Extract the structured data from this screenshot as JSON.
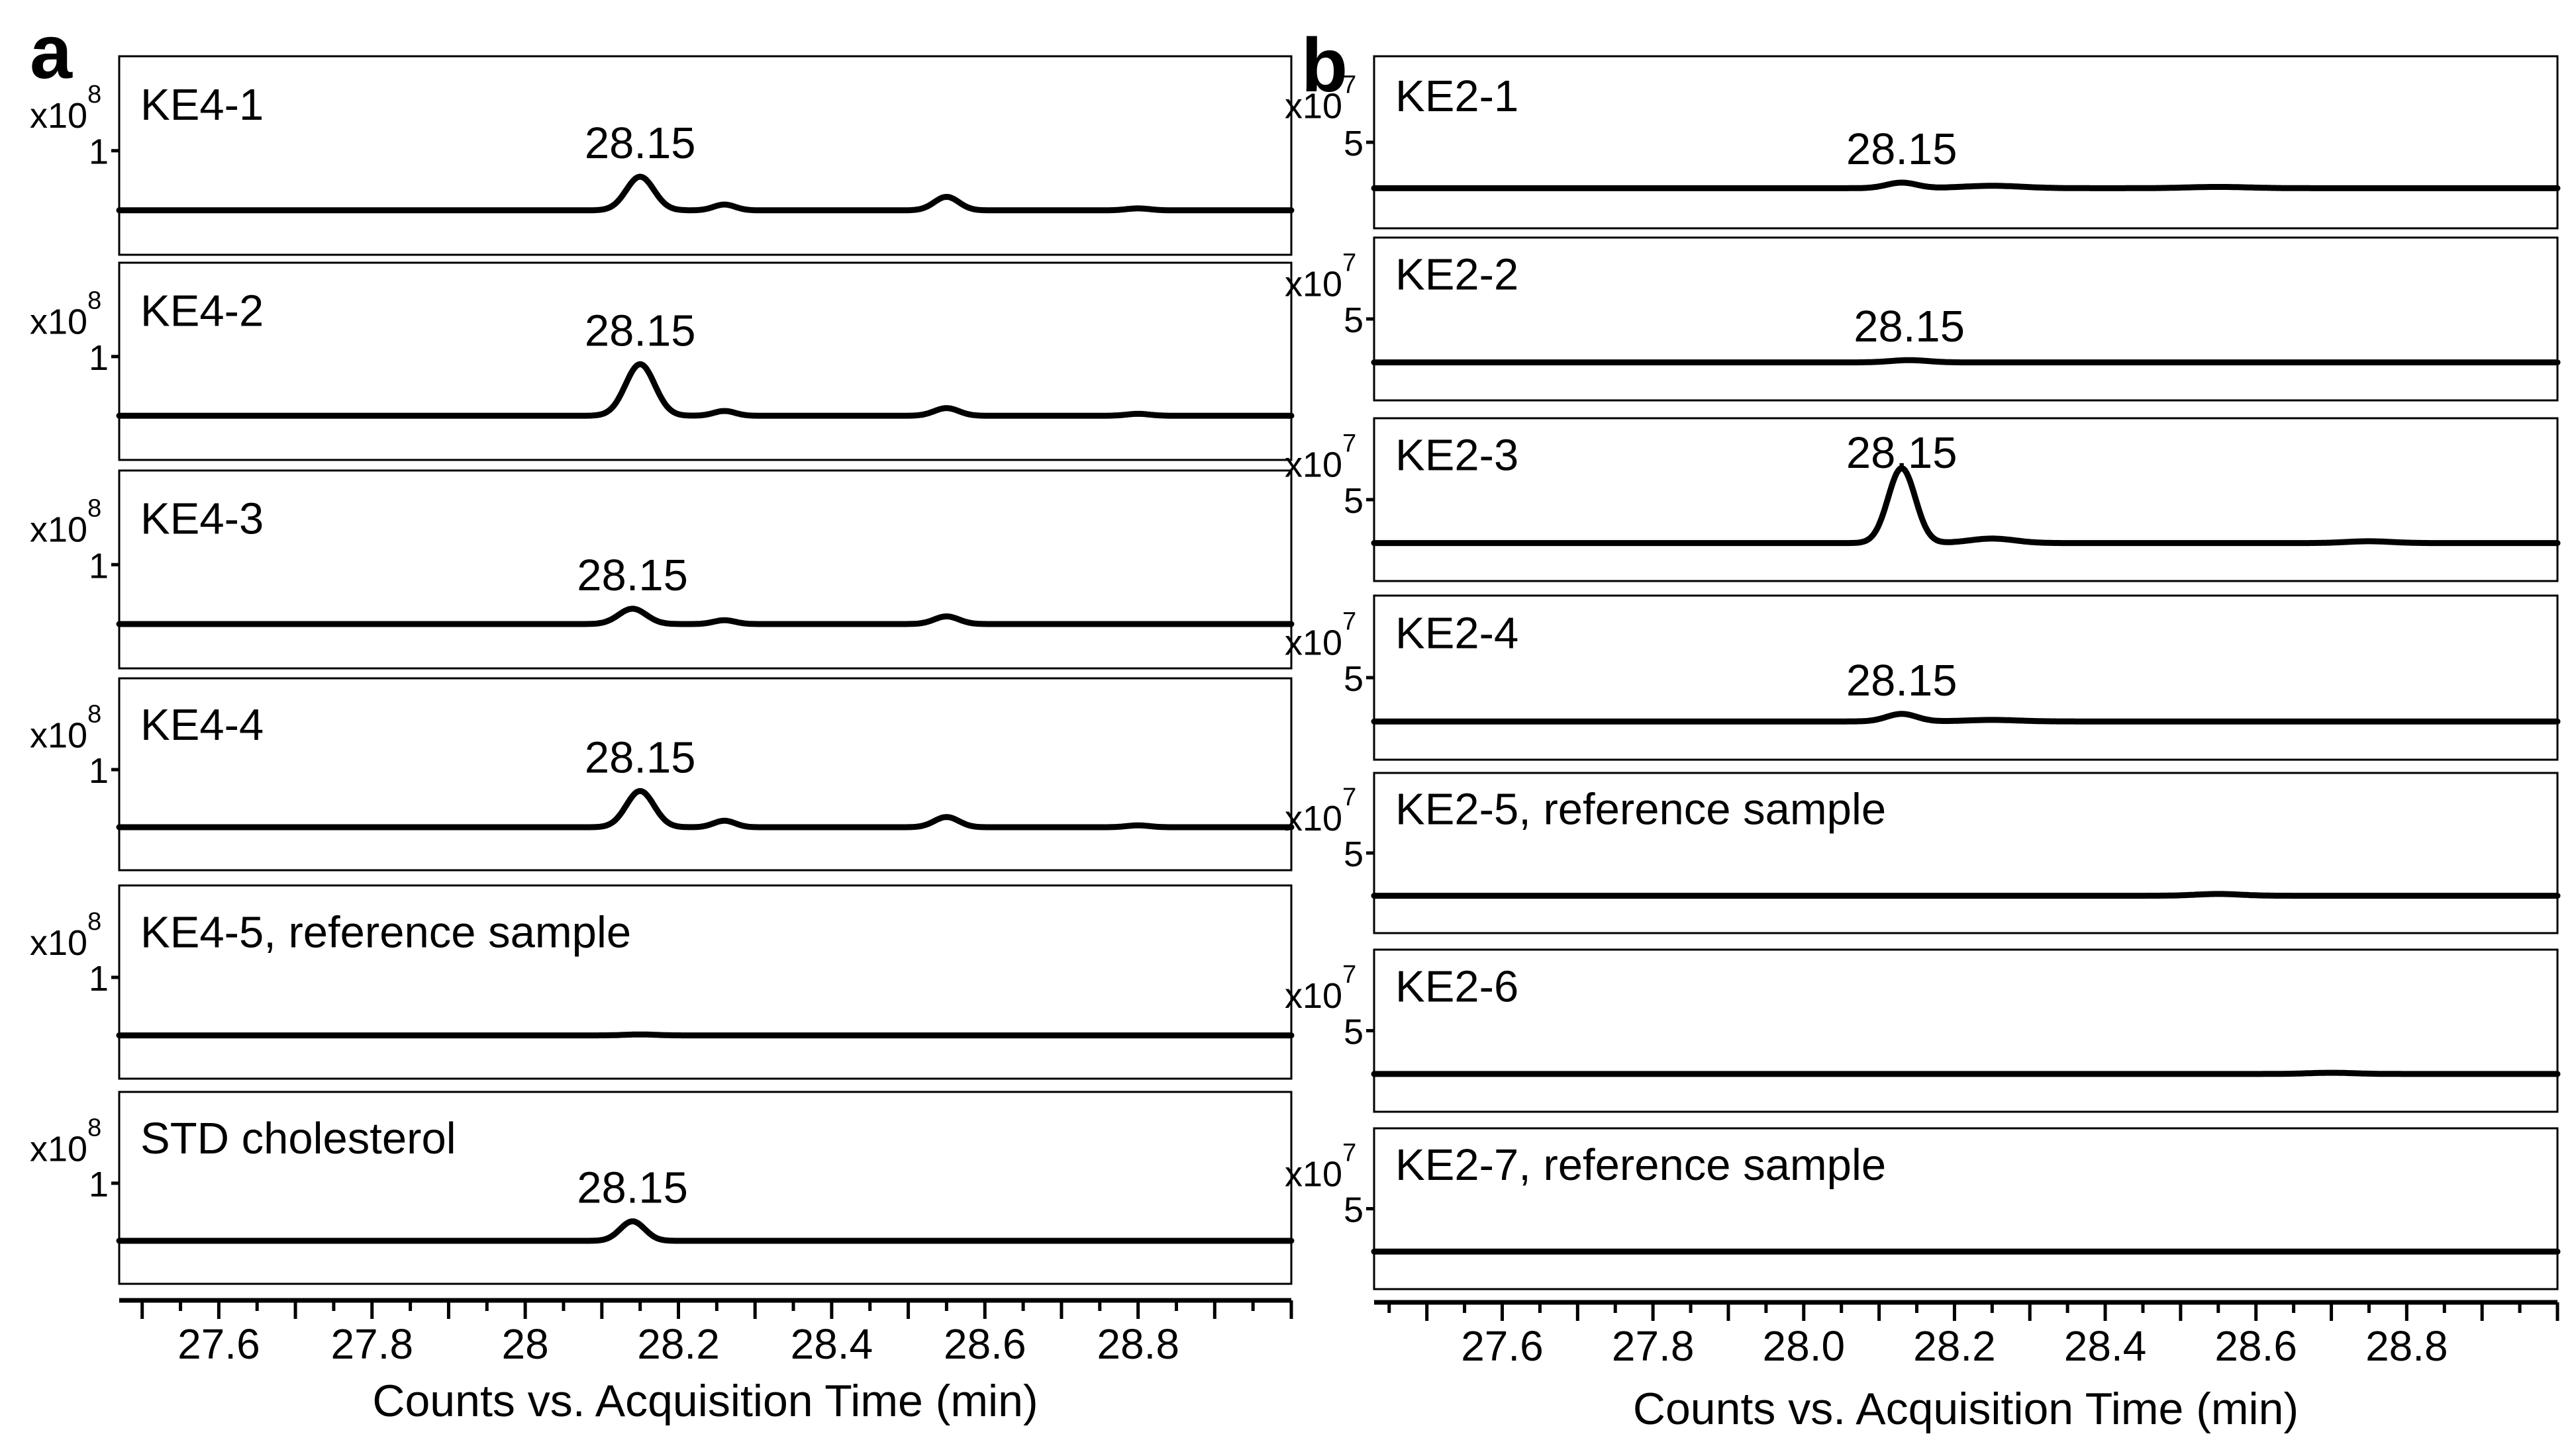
{
  "chart_data": [
    {
      "panel": "a",
      "type": "line",
      "xlabel": "Counts vs. Acquisition Time (min)",
      "xlim": [
        27.47,
        29.0
      ],
      "xtick_values": [
        27.6,
        27.8,
        28.0,
        28.2,
        28.4,
        28.6,
        28.8
      ],
      "xtick_labels": [
        "27.6",
        "27.8",
        "28",
        "28.2",
        "28.4",
        "28.6",
        "28.8"
      ],
      "y_multiplier": {
        "base": "x10",
        "exponent": "8"
      },
      "ytick_label": "1",
      "ytick_value": 1,
      "ylim": [
        0,
        1.9
      ],
      "baseline": 0.38,
      "traces": [
        {
          "name": "KE4-1",
          "peak_label": "28.15",
          "peaks": [
            {
              "x": 28.15,
              "h": 0.35,
              "w": 0.018
            },
            {
              "x": 28.26,
              "h": 0.06,
              "w": 0.014
            },
            {
              "x": 28.55,
              "h": 0.14,
              "w": 0.016
            },
            {
              "x": 28.8,
              "h": 0.02,
              "w": 0.015
            }
          ]
        },
        {
          "name": "KE4-2",
          "peak_label": "28.15",
          "peaks": [
            {
              "x": 28.15,
              "h": 0.54,
              "w": 0.019
            },
            {
              "x": 28.26,
              "h": 0.05,
              "w": 0.014
            },
            {
              "x": 28.55,
              "h": 0.08,
              "w": 0.016
            },
            {
              "x": 28.8,
              "h": 0.02,
              "w": 0.015
            }
          ]
        },
        {
          "name": "KE4-3",
          "peak_label": "28.15",
          "peaks": [
            {
              "x": 28.14,
              "h": 0.16,
              "w": 0.018
            },
            {
              "x": 28.26,
              "h": 0.04,
              "w": 0.014
            },
            {
              "x": 28.55,
              "h": 0.08,
              "w": 0.016
            }
          ]
        },
        {
          "name": "KE4-4",
          "peak_label": "28.15",
          "peaks": [
            {
              "x": 28.15,
              "h": 0.39,
              "w": 0.018
            },
            {
              "x": 28.26,
              "h": 0.07,
              "w": 0.014
            },
            {
              "x": 28.55,
              "h": 0.11,
              "w": 0.016
            },
            {
              "x": 28.8,
              "h": 0.02,
              "w": 0.015
            }
          ]
        },
        {
          "name": "KE4-5, reference sample",
          "peak_label": "",
          "peaks": [
            {
              "x": 28.15,
              "h": 0.01,
              "w": 0.02
            }
          ]
        },
        {
          "name": "STD cholesterol",
          "peak_label": "28.15",
          "peaks": [
            {
              "x": 28.14,
              "h": 0.21,
              "w": 0.016
            }
          ]
        }
      ]
    },
    {
      "panel": "b",
      "type": "line",
      "xlabel": "Counts vs. Acquisition Time (min)",
      "xlim": [
        27.43,
        29.0
      ],
      "xtick_values": [
        27.6,
        27.8,
        28.0,
        28.2,
        28.4,
        28.6,
        28.8
      ],
      "xtick_labels": [
        "27.6",
        "27.8",
        "28.0",
        "28.2",
        "28.4",
        "28.6",
        "28.8"
      ],
      "y_multiplier": {
        "base": "x10",
        "exponent": "7"
      },
      "ytick_label": "5",
      "ytick_value": 5,
      "ylim": [
        0,
        10
      ],
      "baseline": 2.1,
      "traces": [
        {
          "name": "KE2-1",
          "peak_label": "28.15",
          "peaks": [
            {
              "x": 28.13,
              "h": 0.35,
              "w": 0.02
            },
            {
              "x": 28.25,
              "h": 0.15,
              "w": 0.04
            },
            {
              "x": 28.55,
              "h": 0.08,
              "w": 0.04
            }
          ]
        },
        {
          "name": "KE2-2",
          "peak_label": "28.15",
          "peaks": [
            {
              "x": 28.14,
              "h": 0.15,
              "w": 0.025
            }
          ]
        },
        {
          "name": "KE2-3",
          "peak_label": "28.15",
          "peaks": [
            {
              "x": 28.13,
              "h": 5.0,
              "w": 0.018
            },
            {
              "x": 28.25,
              "h": 0.3,
              "w": 0.03
            },
            {
              "x": 28.75,
              "h": 0.12,
              "w": 0.03
            }
          ]
        },
        {
          "name": "KE2-4",
          "peak_label": "28.15",
          "peaks": [
            {
              "x": 28.13,
              "h": 0.5,
              "w": 0.02
            },
            {
              "x": 28.25,
              "h": 0.1,
              "w": 0.035
            }
          ]
        },
        {
          "name": "KE2-5, reference sample",
          "peak_label": "",
          "peaks": [
            {
              "x": 28.55,
              "h": 0.12,
              "w": 0.03
            }
          ]
        },
        {
          "name": "KE2-6",
          "peak_label": "",
          "peaks": [
            {
              "x": 28.7,
              "h": 0.08,
              "w": 0.03
            }
          ]
        },
        {
          "name": "KE2-7, reference sample",
          "peak_label": "",
          "peaks": []
        }
      ]
    }
  ]
}
